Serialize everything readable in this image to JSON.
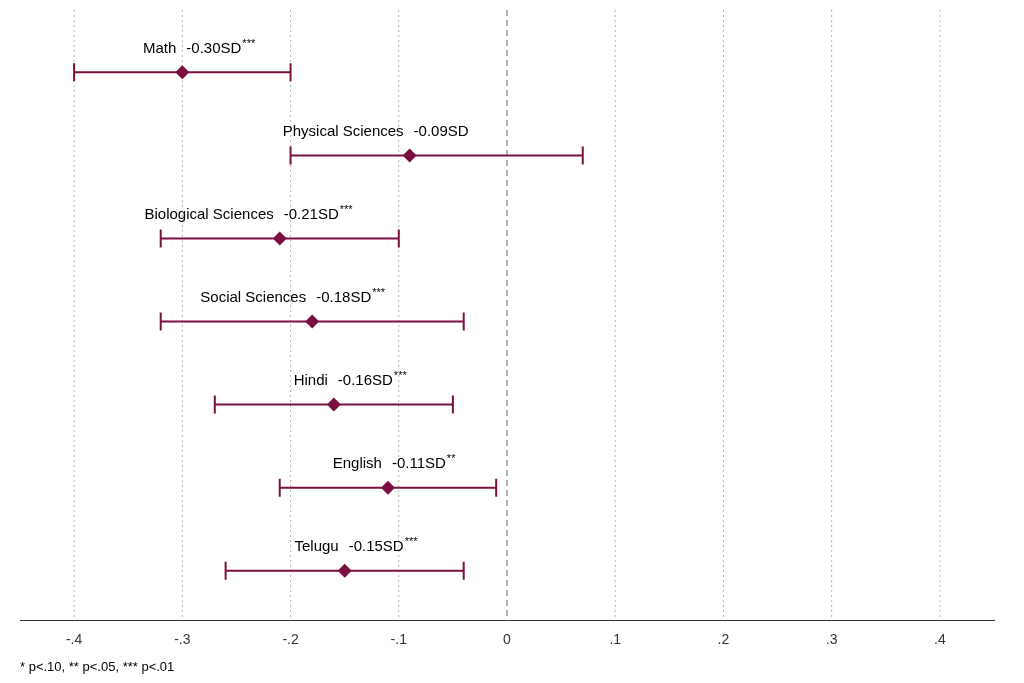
{
  "chart_data": {
    "type": "forest",
    "categories": [
      "Math",
      "Physical Sciences",
      "Biological Sciences",
      "Social Sciences",
      "Hindi",
      "English",
      "Telugu"
    ],
    "values": [
      -0.3,
      -0.09,
      -0.21,
      -0.18,
      -0.16,
      -0.11,
      -0.15
    ],
    "ci_low": [
      -0.4,
      -0.2,
      -0.32,
      -0.32,
      -0.27,
      -0.21,
      -0.26
    ],
    "ci_high": [
      -0.2,
      0.07,
      -0.1,
      -0.04,
      -0.05,
      -0.01,
      -0.04
    ],
    "data_labels": true,
    "value_labels": [
      "-0.30SD",
      "-0.09SD",
      "-0.21SD",
      "-0.18SD",
      "-0.16SD",
      "-0.11SD",
      "-0.15SD"
    ],
    "significance": [
      "***",
      null,
      "***",
      "***",
      "***",
      "**",
      "***"
    ],
    "color": "#7B1040",
    "marker": "diamond",
    "xlim": [
      -0.45,
      0.45
    ],
    "xticks": [
      {
        "value": -0.4,
        "label": "-.4"
      },
      {
        "value": -0.3,
        "label": "-.3"
      },
      {
        "value": -0.2,
        "label": "-.2"
      },
      {
        "value": -0.1,
        "label": "-.1"
      },
      0,
      {
        "value": 0.1,
        "label": ".1"
      },
      {
        "value": 0.2,
        "label": ".2"
      },
      {
        "value": 0.3,
        "label": ".3"
      },
      {
        "value": 0.4,
        "label": ".4"
      }
    ],
    "reference_line": 0,
    "grid": true,
    "tick_labels": "x",
    "footnote": "* p<.10, ** p<.05, *** p<.01"
  }
}
